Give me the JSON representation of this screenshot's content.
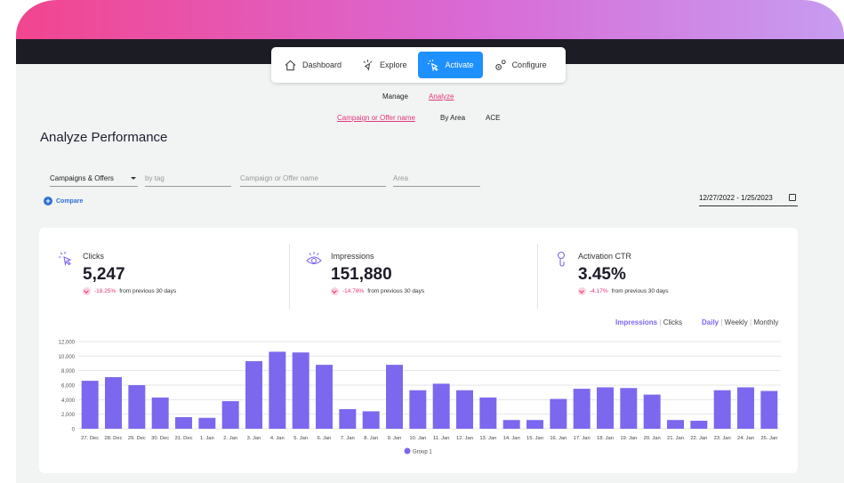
{
  "nav": {
    "items": [
      {
        "label": "Dashboard",
        "icon": "home-icon",
        "active": false
      },
      {
        "label": "Explore",
        "icon": "explore-icon",
        "active": false
      },
      {
        "label": "Activate",
        "icon": "activate-icon",
        "active": true
      },
      {
        "label": "Configure",
        "icon": "gear-icon",
        "active": false
      }
    ]
  },
  "subnav": {
    "manage": "Manage",
    "analyze": "Analyze"
  },
  "subtabs": {
    "campaign": "Campaign or Offer name",
    "by_area": "By Area",
    "ace": "ACE"
  },
  "page_title": "Analyze Performance",
  "filters": {
    "type_value": "Campaigns & Offers",
    "tag_placeholder": "by tag",
    "name_placeholder": "Campaign or Offer name",
    "area_placeholder": "Area"
  },
  "compare_label": "Compare",
  "date_range": "12/27/2022 - 1/25/2023",
  "kpis": [
    {
      "label": "Clicks",
      "value": "5,247",
      "delta": "-18.25%",
      "suffix": "from previous 30 days",
      "icon": "click-icon"
    },
    {
      "label": "Impressions",
      "value": "151,880",
      "delta": "-14.78%",
      "suffix": "from previous 30 days",
      "icon": "eye-icon"
    },
    {
      "label": "Activation CTR",
      "value": "3.45%",
      "delta": "-4.17%",
      "suffix": "from previous 30 days",
      "icon": "ctr-icon"
    }
  ],
  "metric_toggle": {
    "impressions": "Impressions",
    "clicks": "Clicks",
    "active": "Impressions"
  },
  "period_toggle": {
    "daily": "Daily",
    "weekly": "Weekly",
    "monthly": "Monthly",
    "active": "Daily"
  },
  "colors": {
    "bar": "#7b68ee",
    "accent": "#1e90ff",
    "negative": "#e5367a"
  },
  "chart_data": {
    "type": "bar",
    "categories": [
      "27. Dec",
      "28. Dec",
      "29. Dec",
      "30. Dec",
      "31. Dec",
      "1. Jan",
      "2. Jan",
      "3. Jan",
      "4. Jan",
      "5. Jan",
      "6. Jan",
      "7. Jan",
      "8. Jan",
      "9. Jan",
      "10. Jan",
      "11. Jan",
      "12. Jan",
      "13. Jan",
      "14. Jan",
      "15. Jan",
      "16. Jan",
      "17. Jan",
      "18. Jan",
      "19. Jan",
      "20. Jan",
      "21. Jan",
      "22. Jan",
      "23. Jan",
      "24. Jan",
      "25. Jan"
    ],
    "series": [
      {
        "name": "Group 1",
        "values": [
          6600,
          7100,
          6000,
          4300,
          1600,
          1500,
          3800,
          9300,
          10600,
          10500,
          8800,
          2700,
          2400,
          8800,
          5300,
          6200,
          5300,
          4300,
          1200,
          1200,
          4100,
          5500,
          5700,
          5600,
          4700,
          1200,
          1100,
          5300,
          5700,
          5200
        ]
      }
    ],
    "yticks": [
      "0",
      "2,000",
      "4,000",
      "6,000",
      "8,000",
      "10,000",
      "12,000"
    ],
    "ylim": [
      0,
      12000
    ],
    "grid": true,
    "legend": "bottom-center"
  }
}
